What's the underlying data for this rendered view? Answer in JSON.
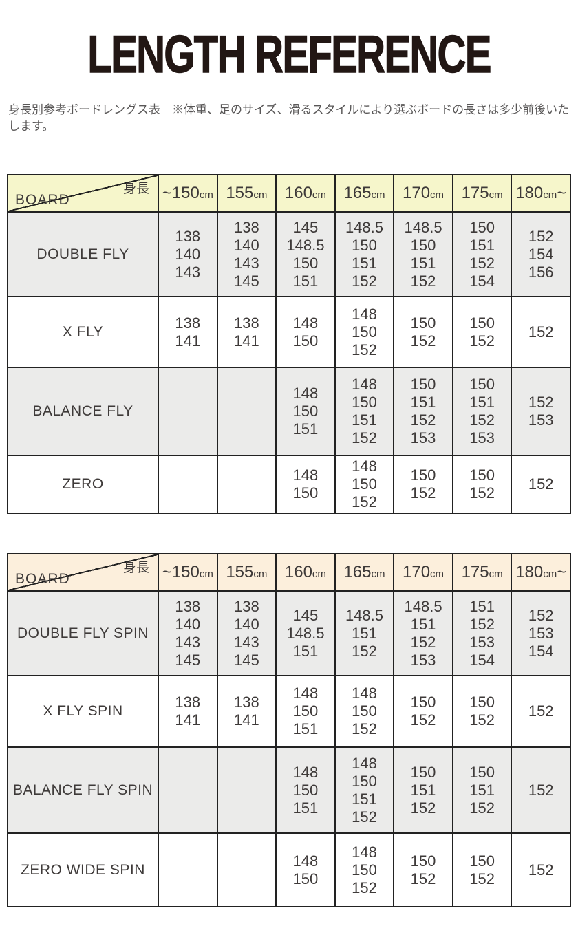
{
  "page": {
    "title": "LENGTH REFERENCE",
    "subtitle": "身長別参考ボードレングス表　※体重、足のサイズ、滑るスタイルにより選ぶボードの長さは多少前後いたします。"
  },
  "colors": {
    "table1_header_bg": "#f6f6cb",
    "table2_header_bg": "#fcefdc",
    "row_alt_bg": "#ebebea",
    "border": "#222222",
    "text": "#3e3a39"
  },
  "tables": [
    {
      "header_bg": "#f6f6cb",
      "corner": {
        "top": "身長",
        "bottom": "BOARD"
      },
      "columns": [
        {
          "value": "~150",
          "unit": "cm",
          "tail": ""
        },
        {
          "value": "155",
          "unit": "cm",
          "tail": ""
        },
        {
          "value": "160",
          "unit": "cm",
          "tail": ""
        },
        {
          "value": "165",
          "unit": "cm",
          "tail": ""
        },
        {
          "value": "170",
          "unit": "cm",
          "tail": ""
        },
        {
          "value": "175",
          "unit": "cm",
          "tail": ""
        },
        {
          "value": "180",
          "unit": "cm",
          "tail": "~"
        }
      ],
      "rows": [
        {
          "label": "DOUBLE FLY",
          "cells": [
            [
              "138",
              "140",
              "143"
            ],
            [
              "138",
              "140",
              "143",
              "145"
            ],
            [
              "145",
              "148.5",
              "150",
              "151"
            ],
            [
              "148.5",
              "150",
              "151",
              "152"
            ],
            [
              "148.5",
              "150",
              "151",
              "152"
            ],
            [
              "150",
              "151",
              "152",
              "154"
            ],
            [
              "152",
              "154",
              "156"
            ]
          ]
        },
        {
          "label": "X FLY",
          "cells": [
            [
              "138",
              "141"
            ],
            [
              "138",
              "141"
            ],
            [
              "148",
              "150"
            ],
            [
              "148",
              "150",
              "152"
            ],
            [
              "150",
              "152"
            ],
            [
              "150",
              "152"
            ],
            [
              "152"
            ]
          ]
        },
        {
          "label": "BALANCE FLY",
          "cells": [
            [],
            [],
            [
              "148",
              "150",
              "151"
            ],
            [
              "148",
              "150",
              "151",
              "152"
            ],
            [
              "150",
              "151",
              "152",
              "153"
            ],
            [
              "150",
              "151",
              "152",
              "153"
            ],
            [
              "152",
              "153"
            ]
          ]
        },
        {
          "label": "ZERO",
          "cells": [
            [],
            [],
            [
              "148",
              "150"
            ],
            [
              "148",
              "150",
              "152"
            ],
            [
              "150",
              "152"
            ],
            [
              "150",
              "152"
            ],
            [
              "152"
            ]
          ]
        }
      ]
    },
    {
      "header_bg": "#fcefdc",
      "corner": {
        "top": "身長",
        "bottom": "BOARD"
      },
      "columns": [
        {
          "value": "~150",
          "unit": "cm",
          "tail": ""
        },
        {
          "value": "155",
          "unit": "cm",
          "tail": ""
        },
        {
          "value": "160",
          "unit": "cm",
          "tail": ""
        },
        {
          "value": "165",
          "unit": "cm",
          "tail": ""
        },
        {
          "value": "170",
          "unit": "cm",
          "tail": ""
        },
        {
          "value": "175",
          "unit": "cm",
          "tail": ""
        },
        {
          "value": "180",
          "unit": "cm",
          "tail": "~"
        }
      ],
      "rows": [
        {
          "label": "DOUBLE FLY SPIN",
          "cells": [
            [
              "138",
              "140",
              "143",
              "145"
            ],
            [
              "138",
              "140",
              "143",
              "145"
            ],
            [
              "145",
              "148.5",
              "151"
            ],
            [
              "148.5",
              "151",
              "152"
            ],
            [
              "148.5",
              "151",
              "152",
              "153"
            ],
            [
              "151",
              "152",
              "153",
              "154"
            ],
            [
              "152",
              "153",
              "154"
            ]
          ]
        },
        {
          "label": "X FLY SPIN",
          "cells": [
            [
              "138",
              "141"
            ],
            [
              "138",
              "141"
            ],
            [
              "148",
              "150",
              "151"
            ],
            [
              "148",
              "150",
              "152"
            ],
            [
              "150",
              "152"
            ],
            [
              "150",
              "152"
            ],
            [
              "152"
            ]
          ]
        },
        {
          "label": "BALANCE  FLY SPIN",
          "cells": [
            [],
            [],
            [
              "148",
              "150",
              "151"
            ],
            [
              "148",
              "150",
              "151",
              "152"
            ],
            [
              "150",
              "151",
              "152"
            ],
            [
              "150",
              "151",
              "152"
            ],
            [
              "152"
            ]
          ]
        },
        {
          "label": "ZERO WIDE SPIN",
          "cells": [
            [],
            [],
            [
              "148",
              "150"
            ],
            [
              "148",
              "150",
              "152"
            ],
            [
              "150",
              "152"
            ],
            [
              "150",
              "152"
            ],
            [
              "152"
            ]
          ]
        }
      ]
    }
  ]
}
